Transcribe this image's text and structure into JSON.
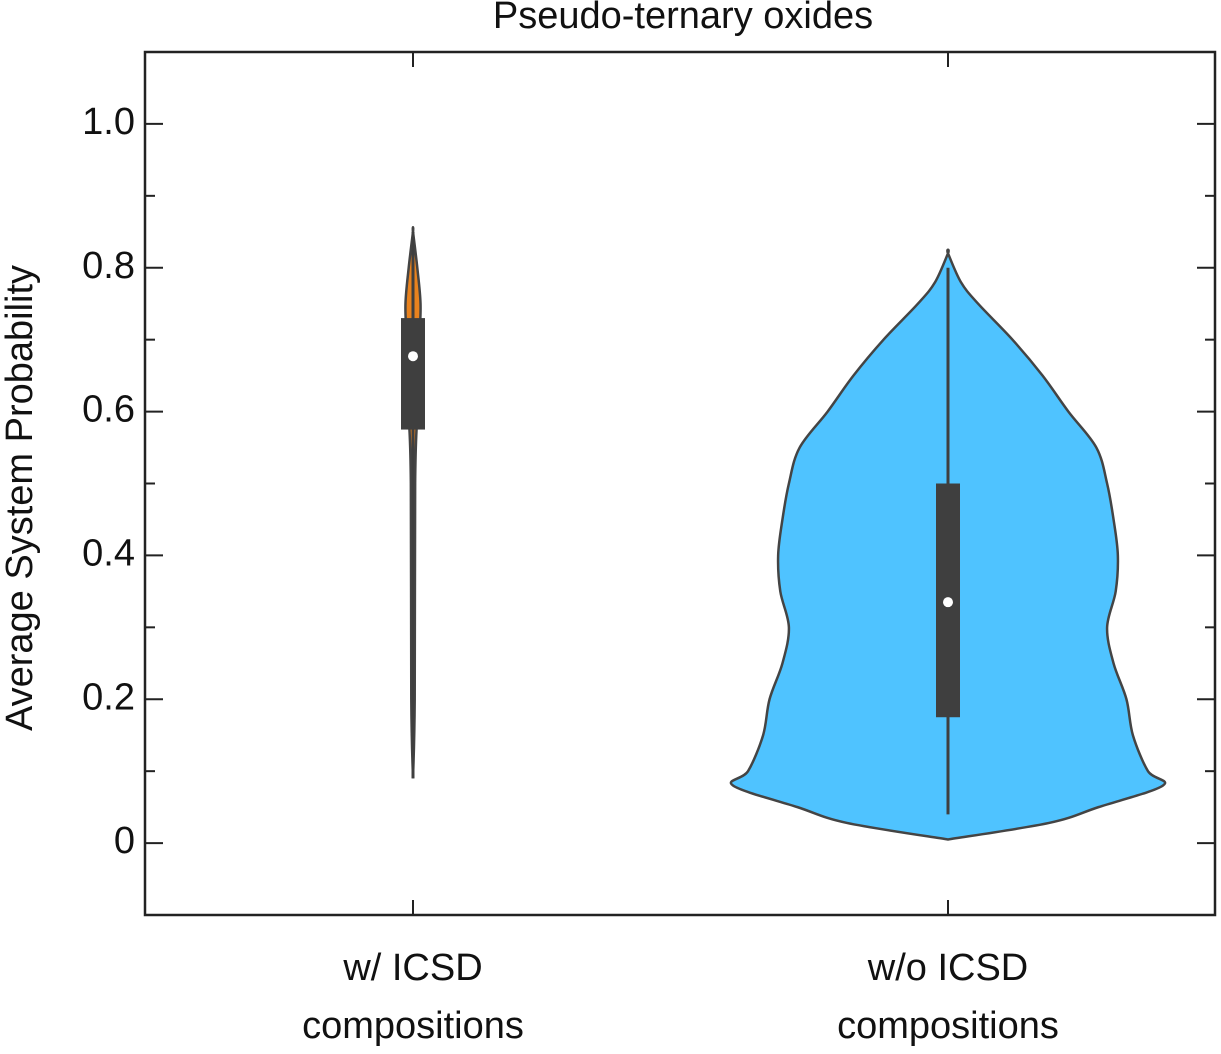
{
  "chart_data": {
    "type": "violin",
    "title": "Pseudo-ternary oxides",
    "y_label": "Average System Probability",
    "categories": [
      [
        "w/ ICSD",
        "compositions"
      ],
      [
        "w/o ICSD",
        "compositions"
      ]
    ],
    "ylim": [
      -0.1,
      1.1
    ],
    "yticks": [
      0,
      0.2,
      0.4,
      0.6,
      0.8,
      {
        "value": 1.0,
        "label": "1.0"
      }
    ],
    "yminor_ticks": [
      0.1,
      0.3,
      0.5,
      0.7,
      0.9
    ],
    "series": [
      {
        "color": "#e8821e",
        "whisker_low": 0.09,
        "q1": 0.575,
        "median": 0.677,
        "q3": 0.73,
        "whisker_high": 0.85,
        "density_y": [
          0.09,
          0.2,
          0.5,
          0.6,
          0.7,
          0.75,
          0.8,
          0.85
        ],
        "density": [
          0,
          0.008,
          0.01,
          0.02,
          0.03,
          0.035,
          0.02,
          0
        ]
      },
      {
        "color": "#4fc3ff",
        "whisker_low": 0.04,
        "q1": 0.175,
        "median": 0.335,
        "q3": 0.5,
        "whisker_high": 0.8,
        "density_y": [
          0.005,
          0.028,
          0.05,
          0.08,
          0.1,
          0.15,
          0.2,
          0.25,
          0.3,
          0.35,
          0.4,
          0.45,
          0.5,
          0.55,
          0.6,
          0.65,
          0.7,
          0.75,
          0.78,
          0.82
        ],
        "density": [
          0,
          0.47,
          0.7,
          1.0,
          0.93,
          0.86,
          0.83,
          0.77,
          0.74,
          0.78,
          0.79,
          0.77,
          0.74,
          0.69,
          0.56,
          0.44,
          0.3,
          0.14,
          0.06,
          0
        ]
      }
    ]
  }
}
